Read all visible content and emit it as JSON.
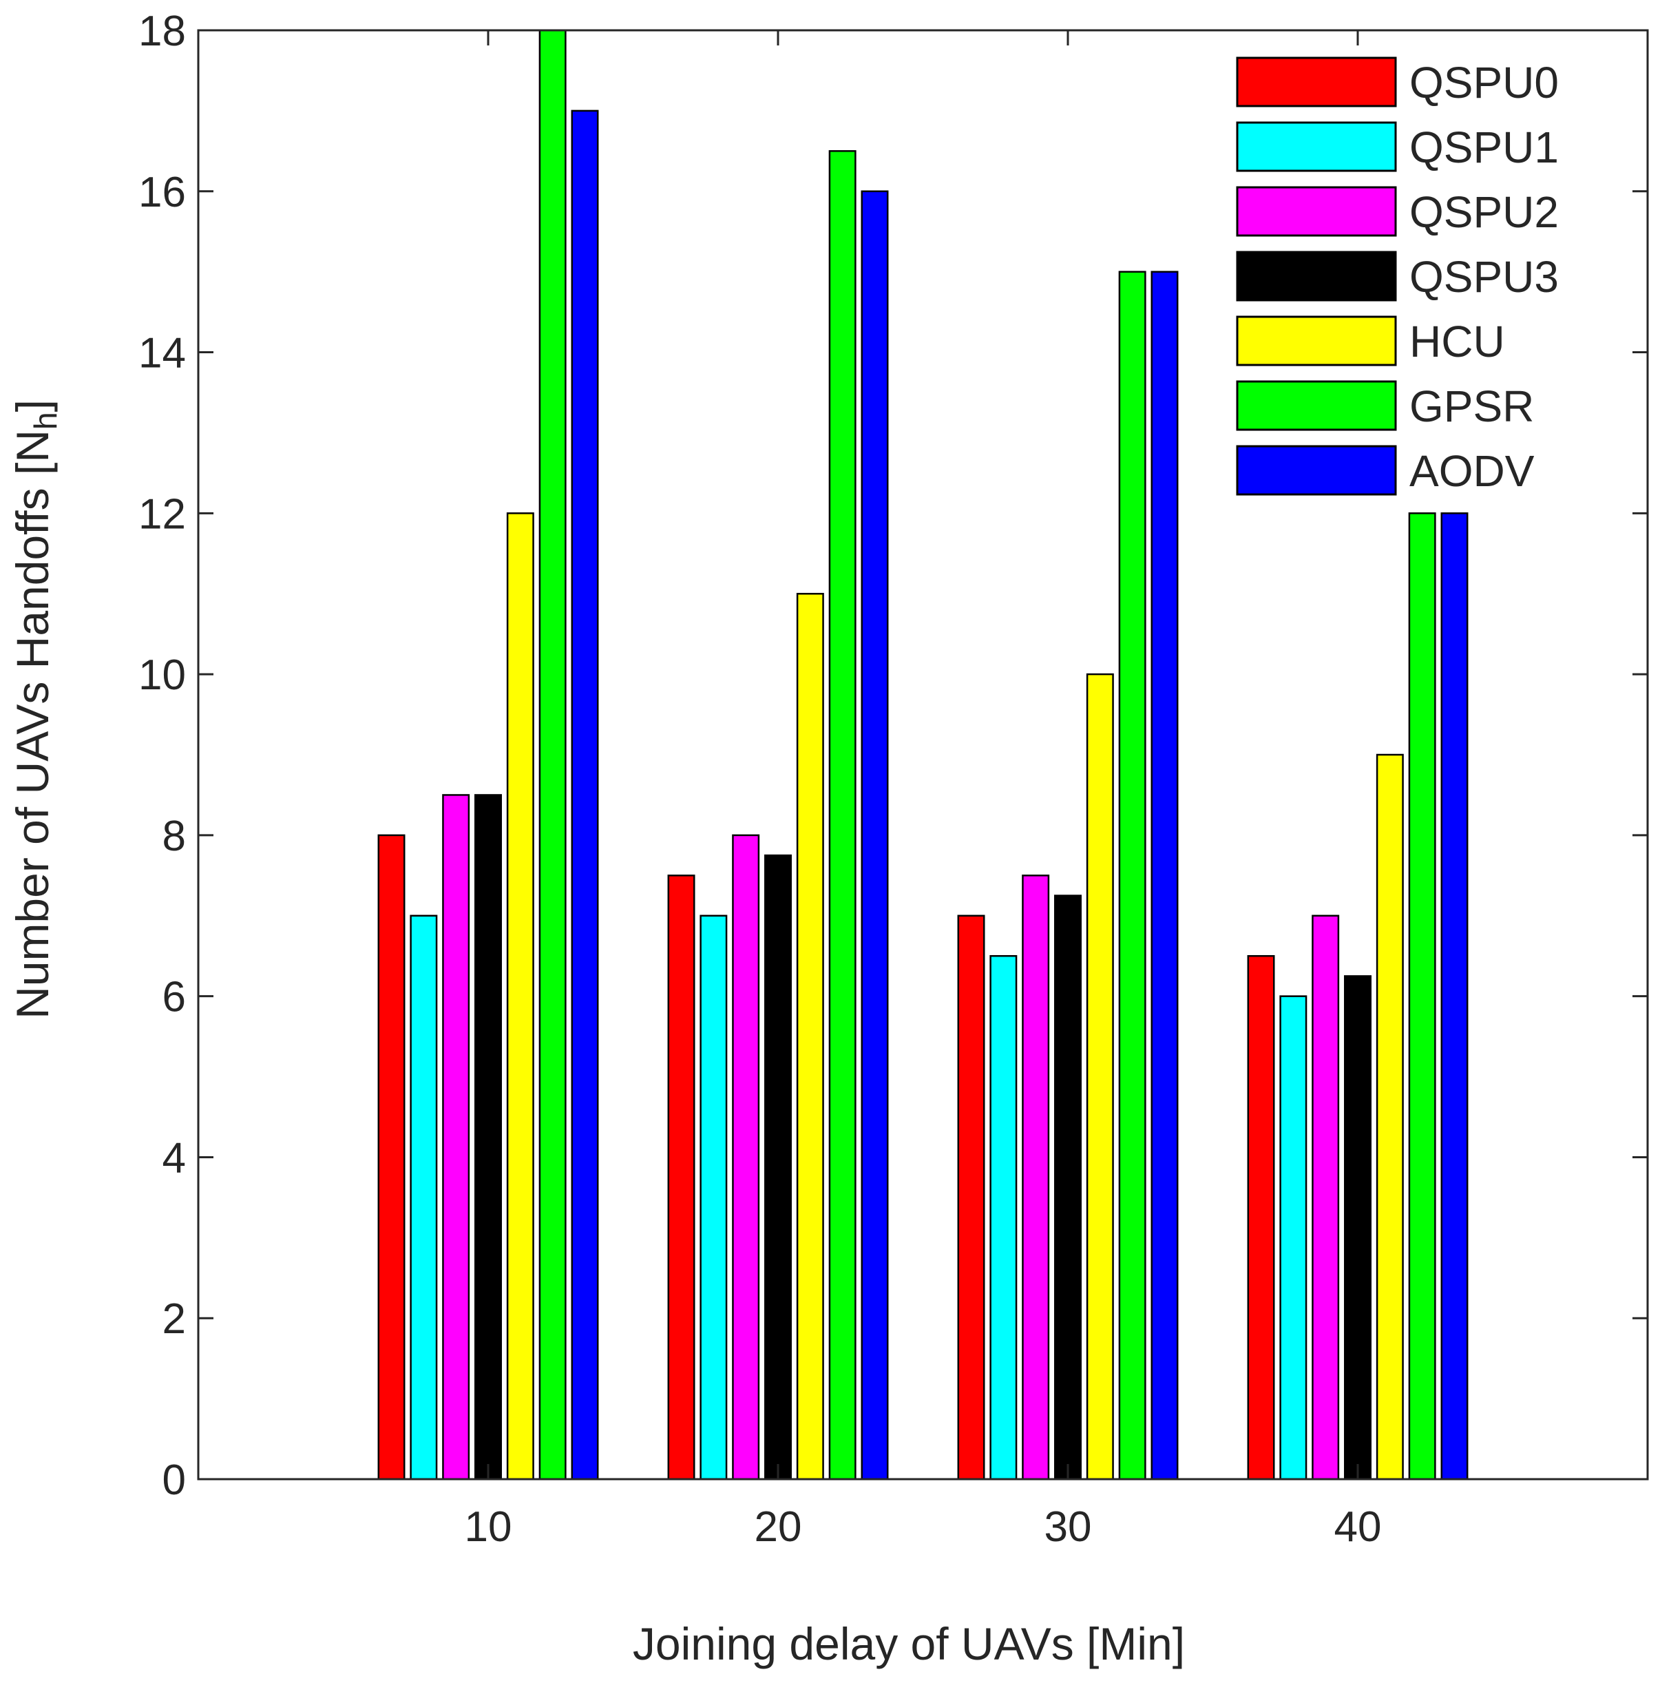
{
  "chart_data": {
    "type": "bar",
    "title": "",
    "xlabel": "Joining delay of UAVs [Min]",
    "ylabel_main": "Number of UAVs Handoffs [N",
    "ylabel_sub": "h",
    "ylabel_end": "]",
    "categories": [
      "10",
      "20",
      "30",
      "40"
    ],
    "xlim": [
      0,
      50
    ],
    "x_positions": [
      10,
      20,
      30,
      40
    ],
    "ylim": [
      0,
      18
    ],
    "yticks": [
      0,
      2,
      4,
      6,
      8,
      10,
      12,
      14,
      16,
      18
    ],
    "grid": false,
    "legend_location": "top-right",
    "series": [
      {
        "name": "QSPU0",
        "color": "#ff0000",
        "values": [
          8,
          7.5,
          7,
          6.5
        ]
      },
      {
        "name": "QSPU1",
        "color": "#00ffff",
        "values": [
          7,
          7,
          6.5,
          6
        ]
      },
      {
        "name": "QSPU2",
        "color": "#ff00ff",
        "values": [
          8.5,
          8,
          7.5,
          7
        ]
      },
      {
        "name": "QSPU3",
        "color": "#000000",
        "values": [
          8.5,
          7.75,
          7.25,
          6.25
        ]
      },
      {
        "name": "HCU",
        "color": "#ffff00",
        "values": [
          12,
          11,
          10,
          9
        ]
      },
      {
        "name": "GPSR",
        "color": "#00ff00",
        "values": [
          18,
          16.5,
          15,
          12
        ]
      },
      {
        "name": "AODV",
        "color": "#0000ff",
        "values": [
          17,
          16,
          15,
          12
        ]
      }
    ]
  }
}
